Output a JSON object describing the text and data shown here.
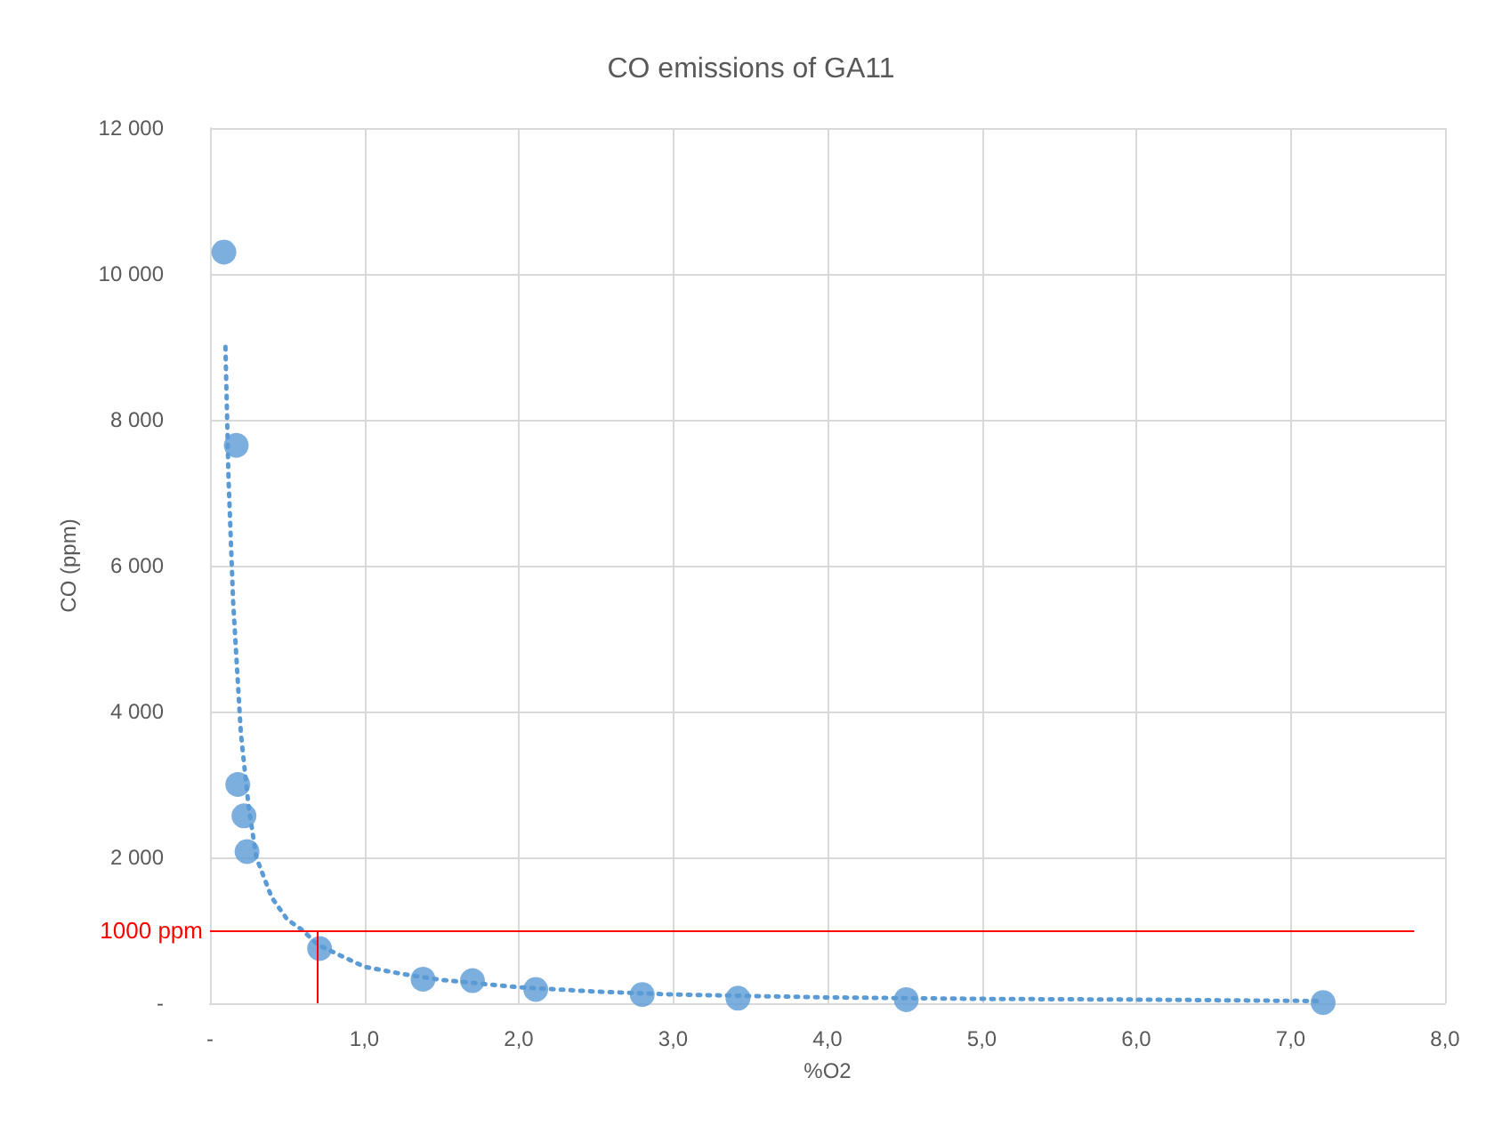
{
  "chart_data": {
    "type": "scatter",
    "title": "CO emissions of GA11",
    "xlabel": "%O2",
    "ylabel": "CO (ppm)",
    "xlim": [
      0,
      8
    ],
    "xticks": [
      {
        "value": 0,
        "label": "-"
      },
      {
        "value": 1,
        "label": "1,0"
      },
      {
        "value": 2,
        "label": "2,0"
      },
      {
        "value": 3,
        "label": "3,0"
      },
      {
        "value": 4,
        "label": "4,0"
      },
      {
        "value": 5,
        "label": "5,0"
      },
      {
        "value": 6,
        "label": "6,0"
      },
      {
        "value": 7,
        "label": "7,0"
      },
      {
        "value": 8,
        "label": "8,0"
      }
    ],
    "ylim": [
      0,
      12000
    ],
    "yticks": [
      {
        "value": 0,
        "label": "-"
      },
      {
        "value": 2000,
        "label": "2 000"
      },
      {
        "value": 4000,
        "label": "4 000"
      },
      {
        "value": 6000,
        "label": "6 000"
      },
      {
        "value": 8000,
        "label": "8 000"
      },
      {
        "value": 10000,
        "label": "10 000"
      },
      {
        "value": 12000,
        "label": "12 000"
      }
    ],
    "grid": true,
    "marker": "circle",
    "series": [
      {
        "color": "#5b9bd5",
        "x": [
          0.09,
          0.17,
          0.18,
          0.22,
          0.24,
          0.71,
          1.38,
          1.7,
          2.11,
          2.8,
          3.42,
          4.51,
          7.21
        ],
        "values": [
          10300,
          7650,
          3000,
          2570,
          2080,
          750,
          330,
          310,
          190,
          120,
          70,
          50,
          10
        ]
      },
      {
        "type": "line",
        "color": "#5b9bd5",
        "line_style": "dotted",
        "marker": "none",
        "x": [
          0.1,
          0.12,
          0.15,
          0.2,
          0.25,
          0.3,
          0.4,
          0.5,
          0.6,
          0.7,
          0.85,
          1,
          1.25,
          1.5,
          2,
          2.5,
          3,
          4,
          5,
          6,
          7.2
        ],
        "values": [
          9000,
          7200,
          5500,
          3700,
          2700,
          2000,
          1450,
          1150,
          1000,
          800,
          650,
          500,
          400,
          320,
          220,
          160,
          120,
          80,
          60,
          50,
          30
        ]
      }
    ],
    "ref_lines": [
      {
        "axis": "y",
        "value": 1000,
        "label": "1000 ppm",
        "color": "#ff0000"
      },
      {
        "axis": "x",
        "value": 0.7,
        "color": "#ff0000"
      }
    ]
  }
}
